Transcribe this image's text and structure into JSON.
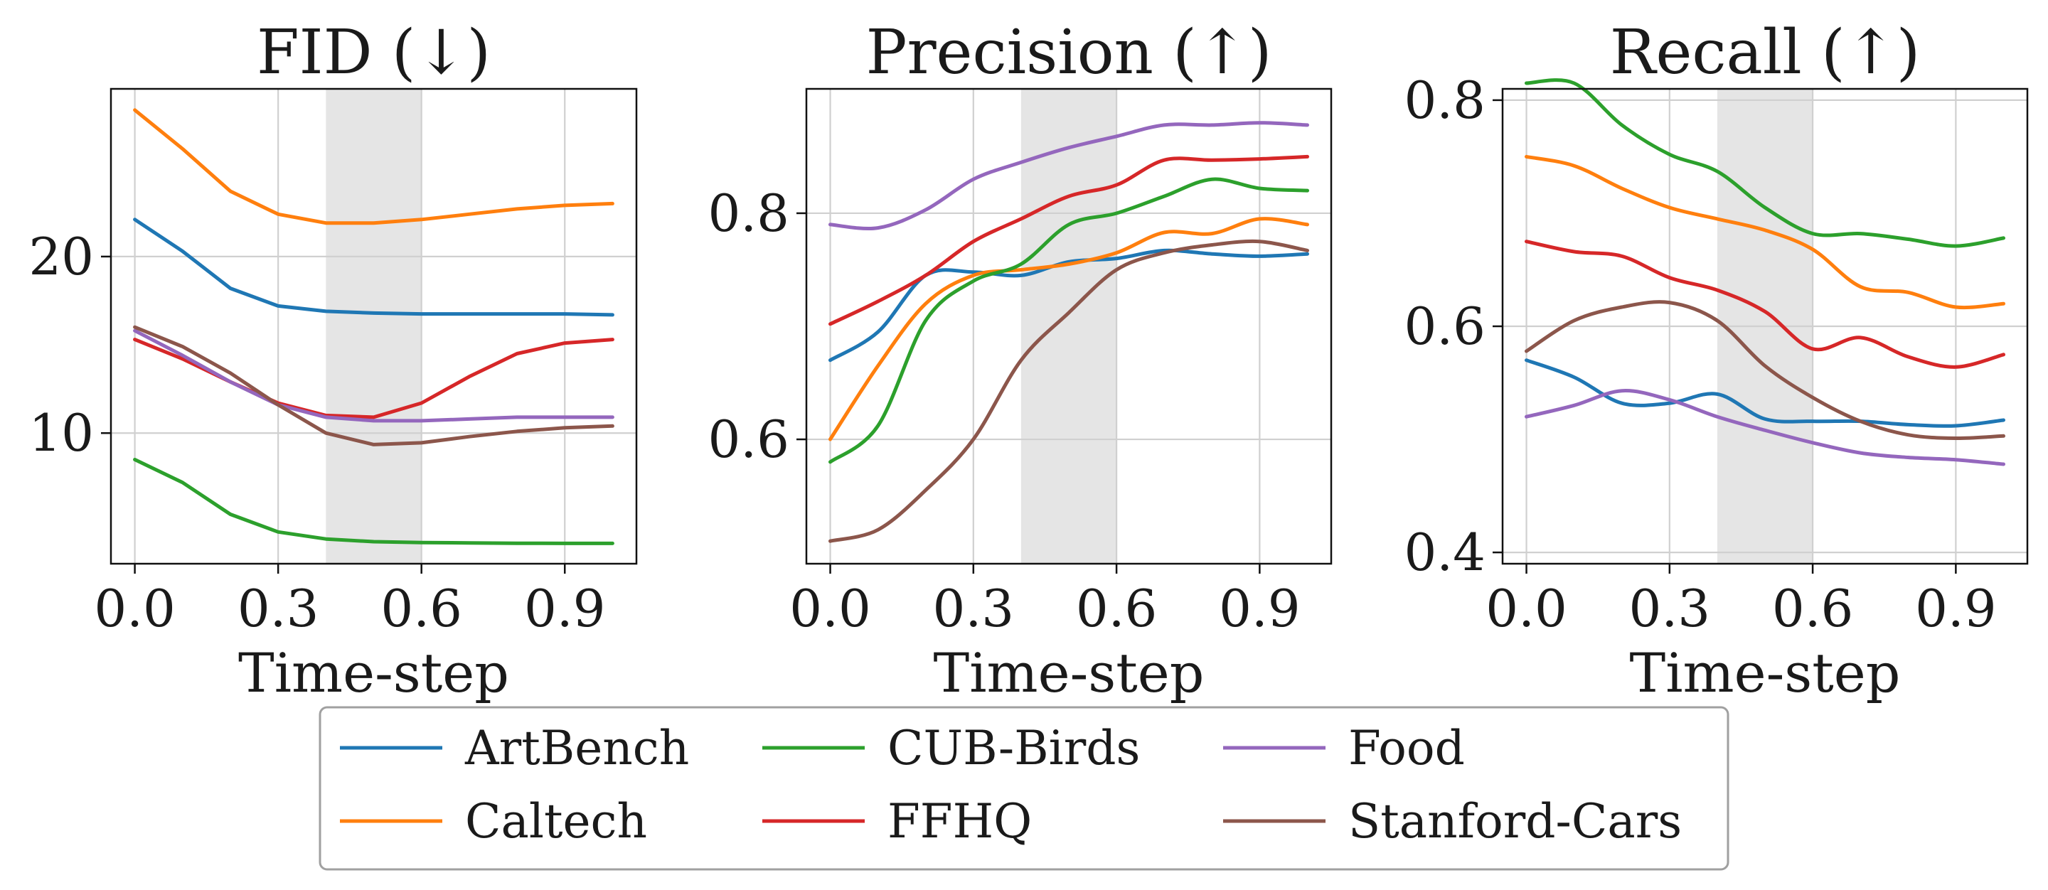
{
  "colors": {
    "ArtBench": "#1f77b4",
    "Caltech": "#ff7f0e",
    "CUB-Birds": "#2ca02c",
    "FFHQ": "#d62728",
    "Food": "#9467bd",
    "Stanford-Cars": "#8c564b",
    "shade": "#e5e5e5",
    "grid": "#d0d0d0"
  },
  "chart_data": [
    {
      "type": "line",
      "title": "FID (↓)",
      "xlabel": "Time-step",
      "ylabel": "",
      "xlim": [
        -0.05,
        1.05
      ],
      "ylim": [
        2.6,
        29.5
      ],
      "xticks": [
        0.0,
        0.3,
        0.6,
        0.9
      ],
      "xtick_labels": [
        "0.0",
        "0.3",
        "0.6",
        "0.9"
      ],
      "yticks": [
        10,
        20
      ],
      "ytick_labels": [
        "10",
        "20"
      ],
      "grid": true,
      "shaded_region": [
        0.4,
        0.6
      ],
      "smooth": false,
      "x": [
        0.0,
        0.1,
        0.2,
        0.3,
        0.4,
        0.5,
        0.6,
        0.7,
        0.8,
        0.9,
        1.0
      ],
      "series": [
        {
          "name": "ArtBench",
          "values": [
            22.1,
            20.3,
            18.2,
            17.2,
            16.9,
            16.8,
            16.75,
            16.75,
            16.75,
            16.75,
            16.7
          ]
        },
        {
          "name": "Caltech",
          "values": [
            28.3,
            26.1,
            23.7,
            22.4,
            21.9,
            21.9,
            22.1,
            22.4,
            22.7,
            22.9,
            23.0
          ]
        },
        {
          "name": "CUB-Birds",
          "values": [
            8.5,
            7.2,
            5.4,
            4.4,
            4.0,
            3.85,
            3.8,
            3.78,
            3.76,
            3.75,
            3.75
          ]
        },
        {
          "name": "FFHQ",
          "values": [
            15.3,
            14.2,
            12.9,
            11.7,
            11.0,
            10.9,
            11.7,
            13.2,
            14.5,
            15.1,
            15.3
          ]
        },
        {
          "name": "Food",
          "values": [
            15.8,
            14.4,
            12.9,
            11.6,
            10.9,
            10.7,
            10.7,
            10.8,
            10.9,
            10.9,
            10.9
          ]
        },
        {
          "name": "Stanford-Cars",
          "values": [
            16.0,
            14.9,
            13.4,
            11.6,
            10.0,
            9.35,
            9.45,
            9.8,
            10.1,
            10.3,
            10.4
          ]
        }
      ]
    },
    {
      "type": "line",
      "title": "Precision (↑)",
      "xlabel": "Time-step",
      "ylabel": "",
      "xlim": [
        -0.05,
        1.05
      ],
      "ylim": [
        0.49,
        0.91
      ],
      "xticks": [
        0.0,
        0.3,
        0.6,
        0.9
      ],
      "xtick_labels": [
        "0.0",
        "0.3",
        "0.6",
        "0.9"
      ],
      "yticks": [
        0.6,
        0.8
      ],
      "ytick_labels": [
        "0.6",
        "0.8"
      ],
      "grid": true,
      "shaded_region": [
        0.4,
        0.6
      ],
      "smooth": true,
      "x": [
        0.0,
        0.1,
        0.2,
        0.3,
        0.4,
        0.5,
        0.6,
        0.7,
        0.8,
        0.9,
        1.0
      ],
      "series": [
        {
          "name": "ArtBench",
          "values": [
            0.67,
            0.695,
            0.745,
            0.748,
            0.745,
            0.757,
            0.76,
            0.767,
            0.764,
            0.762,
            0.764
          ]
        },
        {
          "name": "Caltech",
          "values": [
            0.6,
            0.665,
            0.72,
            0.745,
            0.75,
            0.755,
            0.765,
            0.783,
            0.782,
            0.795,
            0.79
          ]
        },
        {
          "name": "CUB-Birds",
          "values": [
            0.58,
            0.612,
            0.705,
            0.74,
            0.755,
            0.79,
            0.8,
            0.815,
            0.83,
            0.822,
            0.82
          ]
        },
        {
          "name": "FFHQ",
          "values": [
            0.702,
            0.722,
            0.745,
            0.775,
            0.795,
            0.815,
            0.825,
            0.847,
            0.847,
            0.848,
            0.85
          ]
        },
        {
          "name": "Food",
          "values": [
            0.79,
            0.787,
            0.803,
            0.83,
            0.845,
            0.858,
            0.868,
            0.878,
            0.878,
            0.88,
            0.878
          ]
        },
        {
          "name": "Stanford-Cars",
          "values": [
            0.51,
            0.52,
            0.555,
            0.6,
            0.67,
            0.712,
            0.75,
            0.765,
            0.772,
            0.775,
            0.767
          ]
        }
      ]
    },
    {
      "type": "line",
      "title": "Recall (↑)",
      "xlabel": "Time-step",
      "ylabel": "",
      "xlim": [
        -0.05,
        1.05
      ],
      "ylim": [
        0.39,
        0.81
      ],
      "xticks": [
        0.0,
        0.3,
        0.6,
        0.9
      ],
      "xtick_labels": [
        "0.0",
        "0.3",
        "0.6",
        "0.9"
      ],
      "yticks": [
        0.4,
        0.6,
        0.8
      ],
      "ytick_labels": [
        "0.4",
        "0.6",
        "0.8"
      ],
      "grid": true,
      "shaded_region": [
        0.4,
        0.6
      ],
      "smooth": true,
      "x": [
        0.0,
        0.1,
        0.2,
        0.3,
        0.4,
        0.5,
        0.6,
        0.7,
        0.8,
        0.9,
        1.0
      ],
      "series": [
        {
          "name": "ArtBench",
          "values": [
            0.57,
            0.555,
            0.532,
            0.532,
            0.54,
            0.518,
            0.516,
            0.516,
            0.513,
            0.512,
            0.517
          ]
        },
        {
          "name": "Caltech",
          "values": [
            0.75,
            0.742,
            0.722,
            0.705,
            0.695,
            0.685,
            0.668,
            0.635,
            0.63,
            0.617,
            0.62
          ]
        },
        {
          "name": "CUB-Birds",
          "values": [
            0.815,
            0.815,
            0.778,
            0.752,
            0.737,
            0.705,
            0.682,
            0.682,
            0.677,
            0.671,
            0.678
          ]
        },
        {
          "name": "FFHQ",
          "values": [
            0.675,
            0.666,
            0.662,
            0.643,
            0.632,
            0.613,
            0.58,
            0.59,
            0.573,
            0.564,
            0.575
          ]
        },
        {
          "name": "Food",
          "values": [
            0.52,
            0.53,
            0.543,
            0.535,
            0.52,
            0.508,
            0.497,
            0.488,
            0.484,
            0.482,
            0.478
          ]
        },
        {
          "name": "Stanford-Cars",
          "values": [
            0.578,
            0.605,
            0.617,
            0.621,
            0.605,
            0.565,
            0.537,
            0.516,
            0.504,
            0.501,
            0.503
          ]
        }
      ]
    }
  ],
  "legend": {
    "placement": "bottom-center",
    "items": [
      "ArtBench",
      "CUB-Birds",
      "Food",
      "Caltech",
      "FFHQ",
      "Stanford-Cars"
    ]
  }
}
